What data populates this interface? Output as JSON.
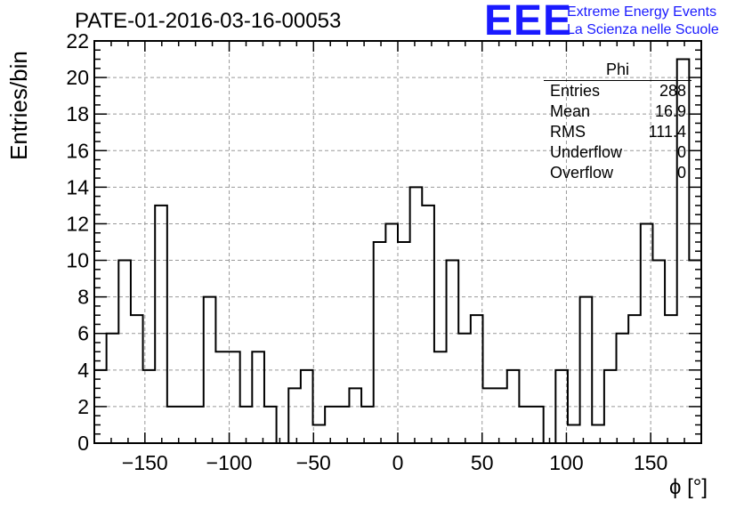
{
  "title": "PATE-01-2016-03-16-00053",
  "logo": {
    "mark": "EEE",
    "line1": "Extreme Energy Events",
    "line2": "La Scienza nelle Scuole",
    "color": "#1a1aff"
  },
  "stats": {
    "name": "Phi",
    "rows": [
      {
        "label": "Entries",
        "value": "288"
      },
      {
        "label": "Mean",
        "value": "16.9"
      },
      {
        "label": "RMS",
        "value": "111.4"
      },
      {
        "label": "Underflow",
        "value": "0"
      },
      {
        "label": "Overflow",
        "value": "0"
      }
    ]
  },
  "chart_data": {
    "type": "histogram",
    "title": "PATE-01-2016-03-16-00053",
    "xlabel": "ϕ [°]",
    "ylabel": "Entries/bin",
    "xlim": [
      -180,
      180
    ],
    "ylim": [
      0,
      22
    ],
    "bin_width": 7.2,
    "x_ticks": [
      -150,
      -100,
      -50,
      0,
      50,
      100,
      150
    ],
    "x_tick_labels": [
      "−150",
      "−100",
      "−50",
      "0",
      "50",
      "100",
      "150"
    ],
    "y_ticks": [
      0,
      2,
      4,
      6,
      8,
      10,
      12,
      14,
      16,
      18,
      20,
      22
    ],
    "grid": true,
    "values": [
      4,
      6,
      10,
      7,
      4,
      13,
      2,
      2,
      2,
      8,
      5,
      5,
      2,
      5,
      2,
      0,
      3,
      4,
      1,
      2,
      2,
      3,
      2,
      11,
      12,
      11,
      14,
      13,
      5,
      10,
      6,
      7,
      3,
      3,
      4,
      2,
      2,
      0,
      4,
      1,
      8,
      1,
      4,
      6,
      7,
      12,
      10,
      7,
      21,
      10
    ]
  }
}
